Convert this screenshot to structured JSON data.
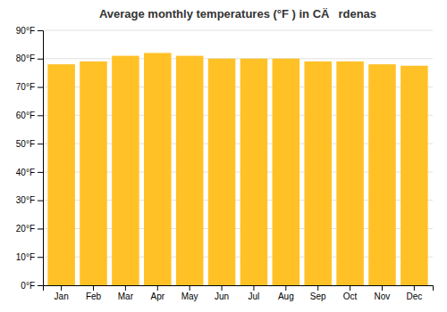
{
  "chart_data": {
    "type": "bar",
    "title": "Average monthly temperatures (°F ) in CÄrdenas",
    "categories": [
      "Jan",
      "Feb",
      "Mar",
      "Apr",
      "May",
      "Jun",
      "Jul",
      "Aug",
      "Sep",
      "Oct",
      "Nov",
      "Dec"
    ],
    "values": [
      78.0,
      79.0,
      81.0,
      82.0,
      81.0,
      80.0,
      80.0,
      80.0,
      79.0,
      79.0,
      78.0,
      77.5
    ],
    "color": "#FFC125",
    "ylim": [
      0,
      90
    ],
    "yticks": [
      {
        "value": 0,
        "label": "0°F"
      },
      {
        "value": 10,
        "label": "10°F"
      },
      {
        "value": 20,
        "label": "20°F"
      },
      {
        "value": 30,
        "label": "30°F"
      },
      {
        "value": 40,
        "label": "40°F"
      },
      {
        "value": 50,
        "label": "50°F"
      },
      {
        "value": 60,
        "label": "60°F"
      },
      {
        "value": 70,
        "label": "70°F"
      },
      {
        "value": 80,
        "label": "80°F"
      },
      {
        "value": 90,
        "label": "90°F"
      }
    ],
    "grid": true
  }
}
